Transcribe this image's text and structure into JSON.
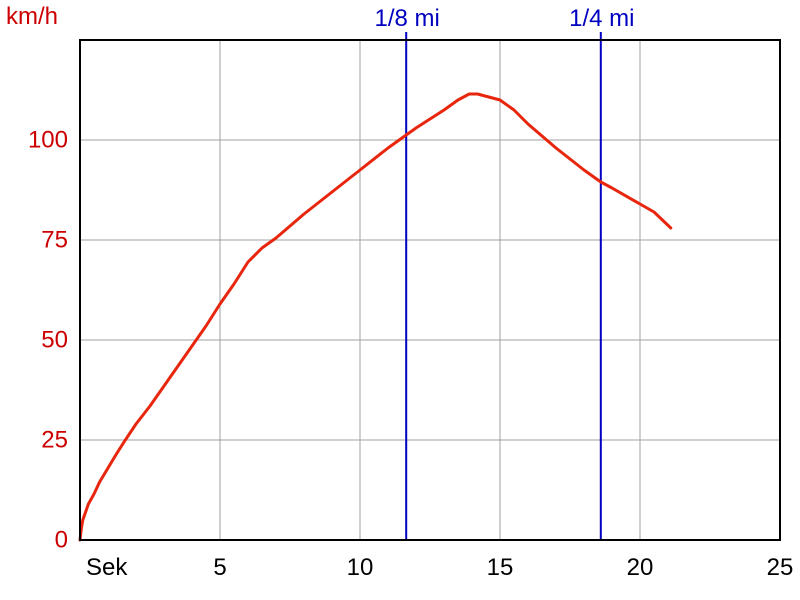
{
  "chart_data": {
    "type": "line",
    "title": "",
    "xlabel": "Sek",
    "ylabel": "km/h",
    "xlim": [
      0,
      25
    ],
    "ylim": [
      0,
      125
    ],
    "x_ticks": [
      {
        "value": 5,
        "label": "5"
      },
      {
        "value": 10,
        "label": "10"
      },
      {
        "value": 15,
        "label": "15"
      },
      {
        "value": 20,
        "label": "20"
      },
      {
        "value": 25,
        "label": "25"
      }
    ],
    "y_ticks": [
      {
        "value": 0,
        "label": "0"
      },
      {
        "value": 25,
        "label": "25"
      },
      {
        "value": 50,
        "label": "50"
      },
      {
        "value": 75,
        "label": "75"
      },
      {
        "value": 100,
        "label": "100"
      }
    ],
    "grid": true,
    "colors": {
      "series": "#e8260d",
      "markers": "#0000c0",
      "ylabels": "#cc0000",
      "grid": "#a0a0a0"
    },
    "series": [
      {
        "x": [
          0,
          0.05,
          0.1,
          0.2,
          0.3,
          0.5,
          0.7,
          1.0,
          1.3,
          1.6,
          2.0,
          2.5,
          3.0,
          3.5,
          4.0,
          4.5,
          5.0,
          5.5,
          6.0,
          6.5,
          7.0,
          8.0,
          9.0,
          10.0,
          11.0,
          11.7,
          12.0,
          13.0,
          13.5,
          13.9,
          14.2,
          15.0,
          15.5,
          16.0,
          17.0,
          18.0,
          18.6,
          19.0,
          20.0,
          20.5,
          21.1
        ],
        "y": [
          0,
          3,
          5,
          7,
          9,
          11.5,
          14.5,
          18,
          21.5,
          24.8,
          29,
          33.5,
          38.5,
          43.5,
          48.5,
          53.5,
          59,
          64,
          69.5,
          73,
          75.5,
          81.5,
          87,
          92.5,
          98,
          101.5,
          103,
          107.5,
          110,
          111.5,
          111.5,
          110,
          107.5,
          104,
          98,
          92.5,
          89.5,
          88,
          84,
          82,
          78
        ]
      }
    ],
    "markers": [
      {
        "label": "1/8 mi",
        "x": 11.65
      },
      {
        "label": "1/4 mi",
        "x": 18.6
      }
    ]
  }
}
